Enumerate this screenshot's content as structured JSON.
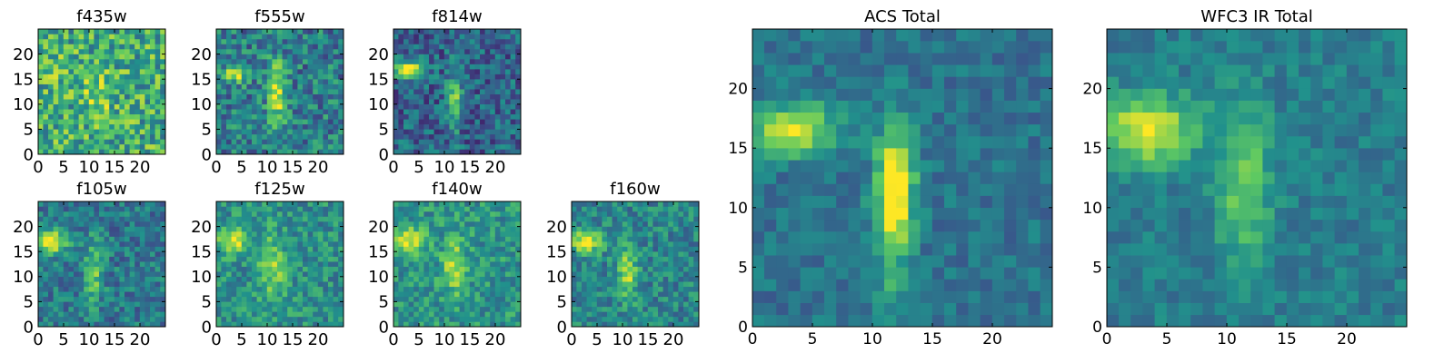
{
  "figure": {
    "colormap": "viridis",
    "colormap_stops": [
      "#440154",
      "#3b528b",
      "#21918c",
      "#5ec962",
      "#fde725"
    ]
  },
  "chart_data": [
    {
      "type": "heatmap",
      "title": "f435w",
      "grid_size": [
        25,
        25
      ],
      "xlim": [
        0,
        25
      ],
      "ylim": [
        0,
        25
      ],
      "xticks": [
        0,
        5,
        10,
        15,
        20
      ],
      "yticks": [
        0,
        5,
        10,
        15,
        20
      ],
      "background_level": 0.62,
      "noise": 0.55,
      "sources": [
        {
          "x": 12,
          "y": 12,
          "sx": 2.0,
          "sy": 2.5,
          "amp": 0.25
        },
        {
          "x": 4,
          "y": 17,
          "sx": 2.0,
          "sy": 2.0,
          "amp": 0.1
        }
      ]
    },
    {
      "type": "heatmap",
      "title": "f555w",
      "grid_size": [
        25,
        25
      ],
      "xlim": [
        0,
        25
      ],
      "ylim": [
        0,
        25
      ],
      "xticks": [
        0,
        5,
        10,
        15,
        20
      ],
      "yticks": [
        0,
        5,
        10,
        15,
        20
      ],
      "background_level": 0.42,
      "noise": 0.45,
      "sources": [
        {
          "x": 12,
          "y": 12,
          "sx": 1.2,
          "sy": 4.5,
          "amp": 0.5
        },
        {
          "x": 4,
          "y": 16,
          "sx": 1.8,
          "sy": 1.3,
          "amp": 0.45
        }
      ]
    },
    {
      "type": "heatmap",
      "title": "f814w",
      "grid_size": [
        25,
        25
      ],
      "xlim": [
        0,
        25
      ],
      "ylim": [
        0,
        25
      ],
      "xticks": [
        0,
        5,
        10,
        15,
        20
      ],
      "yticks": [
        0,
        5,
        10,
        15,
        20
      ],
      "background_level": 0.32,
      "noise": 0.4,
      "sources": [
        {
          "x": 3,
          "y": 17,
          "sx": 2.2,
          "sy": 1.3,
          "amp": 0.65
        },
        {
          "x": 12,
          "y": 11,
          "sx": 1.0,
          "sy": 4.0,
          "amp": 0.45
        }
      ]
    },
    {
      "type": "heatmap",
      "title": "f105w",
      "grid_size": [
        25,
        25
      ],
      "xlim": [
        0,
        25
      ],
      "ylim": [
        0,
        25
      ],
      "xticks": [
        0,
        5,
        10,
        15,
        20
      ],
      "yticks": [
        0,
        5,
        10,
        15,
        20
      ],
      "background_level": 0.4,
      "noise": 0.35,
      "sources": [
        {
          "x": 3,
          "y": 17,
          "sx": 2.0,
          "sy": 1.6,
          "amp": 0.6
        },
        {
          "x": 11,
          "y": 11,
          "sx": 1.3,
          "sy": 4.5,
          "amp": 0.35
        }
      ]
    },
    {
      "type": "heatmap",
      "title": "f125w",
      "grid_size": [
        25,
        25
      ],
      "xlim": [
        0,
        25
      ],
      "ylim": [
        0,
        25
      ],
      "xticks": [
        0,
        5,
        10,
        15,
        20
      ],
      "yticks": [
        0,
        5,
        10,
        15,
        20
      ],
      "background_level": 0.5,
      "noise": 0.35,
      "sources": [
        {
          "x": 3,
          "y": 17,
          "sx": 2.2,
          "sy": 1.8,
          "amp": 0.45
        },
        {
          "x": 11,
          "y": 12,
          "sx": 2.0,
          "sy": 4.5,
          "amp": 0.3
        }
      ]
    },
    {
      "type": "heatmap",
      "title": "f140w",
      "grid_size": [
        25,
        25
      ],
      "xlim": [
        0,
        25
      ],
      "ylim": [
        0,
        25
      ],
      "xticks": [
        0,
        5,
        10,
        15,
        20
      ],
      "yticks": [
        0,
        5,
        10,
        15,
        20
      ],
      "background_level": 0.52,
      "noise": 0.35,
      "sources": [
        {
          "x": 3,
          "y": 17,
          "sx": 2.2,
          "sy": 1.8,
          "amp": 0.45
        },
        {
          "x": 12,
          "y": 12,
          "sx": 1.5,
          "sy": 4.0,
          "amp": 0.35
        }
      ]
    },
    {
      "type": "heatmap",
      "title": "f160w",
      "grid_size": [
        25,
        25
      ],
      "xlim": [
        0,
        25
      ],
      "ylim": [
        0,
        25
      ],
      "xticks": [
        0,
        5,
        10,
        15,
        20
      ],
      "yticks": [
        0,
        5,
        10,
        15,
        20
      ],
      "background_level": 0.45,
      "noise": 0.35,
      "sources": [
        {
          "x": 3,
          "y": 17,
          "sx": 2.2,
          "sy": 1.5,
          "amp": 0.55
        },
        {
          "x": 11,
          "y": 11,
          "sx": 1.3,
          "sy": 4.0,
          "amp": 0.4
        }
      ]
    },
    {
      "type": "heatmap",
      "title": "ACS Total",
      "grid_size": [
        25,
        25
      ],
      "xlim": [
        0,
        25
      ],
      "ylim": [
        0,
        25
      ],
      "xticks": [
        0,
        5,
        10,
        15,
        20
      ],
      "yticks": [
        0,
        5,
        10,
        15,
        20
      ],
      "background_level": 0.38,
      "noise": 0.22,
      "sources": [
        {
          "x": 3.5,
          "y": 16.5,
          "sx": 2.3,
          "sy": 1.5,
          "amp": 0.6
        },
        {
          "x": 12,
          "y": 12,
          "sx": 1.1,
          "sy": 3.5,
          "amp": 0.55
        },
        {
          "x": 11.5,
          "y": 8,
          "sx": 1.0,
          "sy": 5.0,
          "amp": 0.25
        }
      ]
    },
    {
      "type": "heatmap",
      "title": "WFC3 IR Total",
      "grid_size": [
        25,
        25
      ],
      "xlim": [
        0,
        25
      ],
      "ylim": [
        0,
        25
      ],
      "xticks": [
        0,
        5,
        10,
        15,
        20
      ],
      "yticks": [
        0,
        5,
        10,
        15,
        20
      ],
      "background_level": 0.42,
      "noise": 0.2,
      "sources": [
        {
          "x": 3.5,
          "y": 16.5,
          "sx": 2.8,
          "sy": 2.0,
          "amp": 0.55
        },
        {
          "x": 11.5,
          "y": 12,
          "sx": 1.5,
          "sy": 5.0,
          "amp": 0.35
        }
      ]
    }
  ]
}
